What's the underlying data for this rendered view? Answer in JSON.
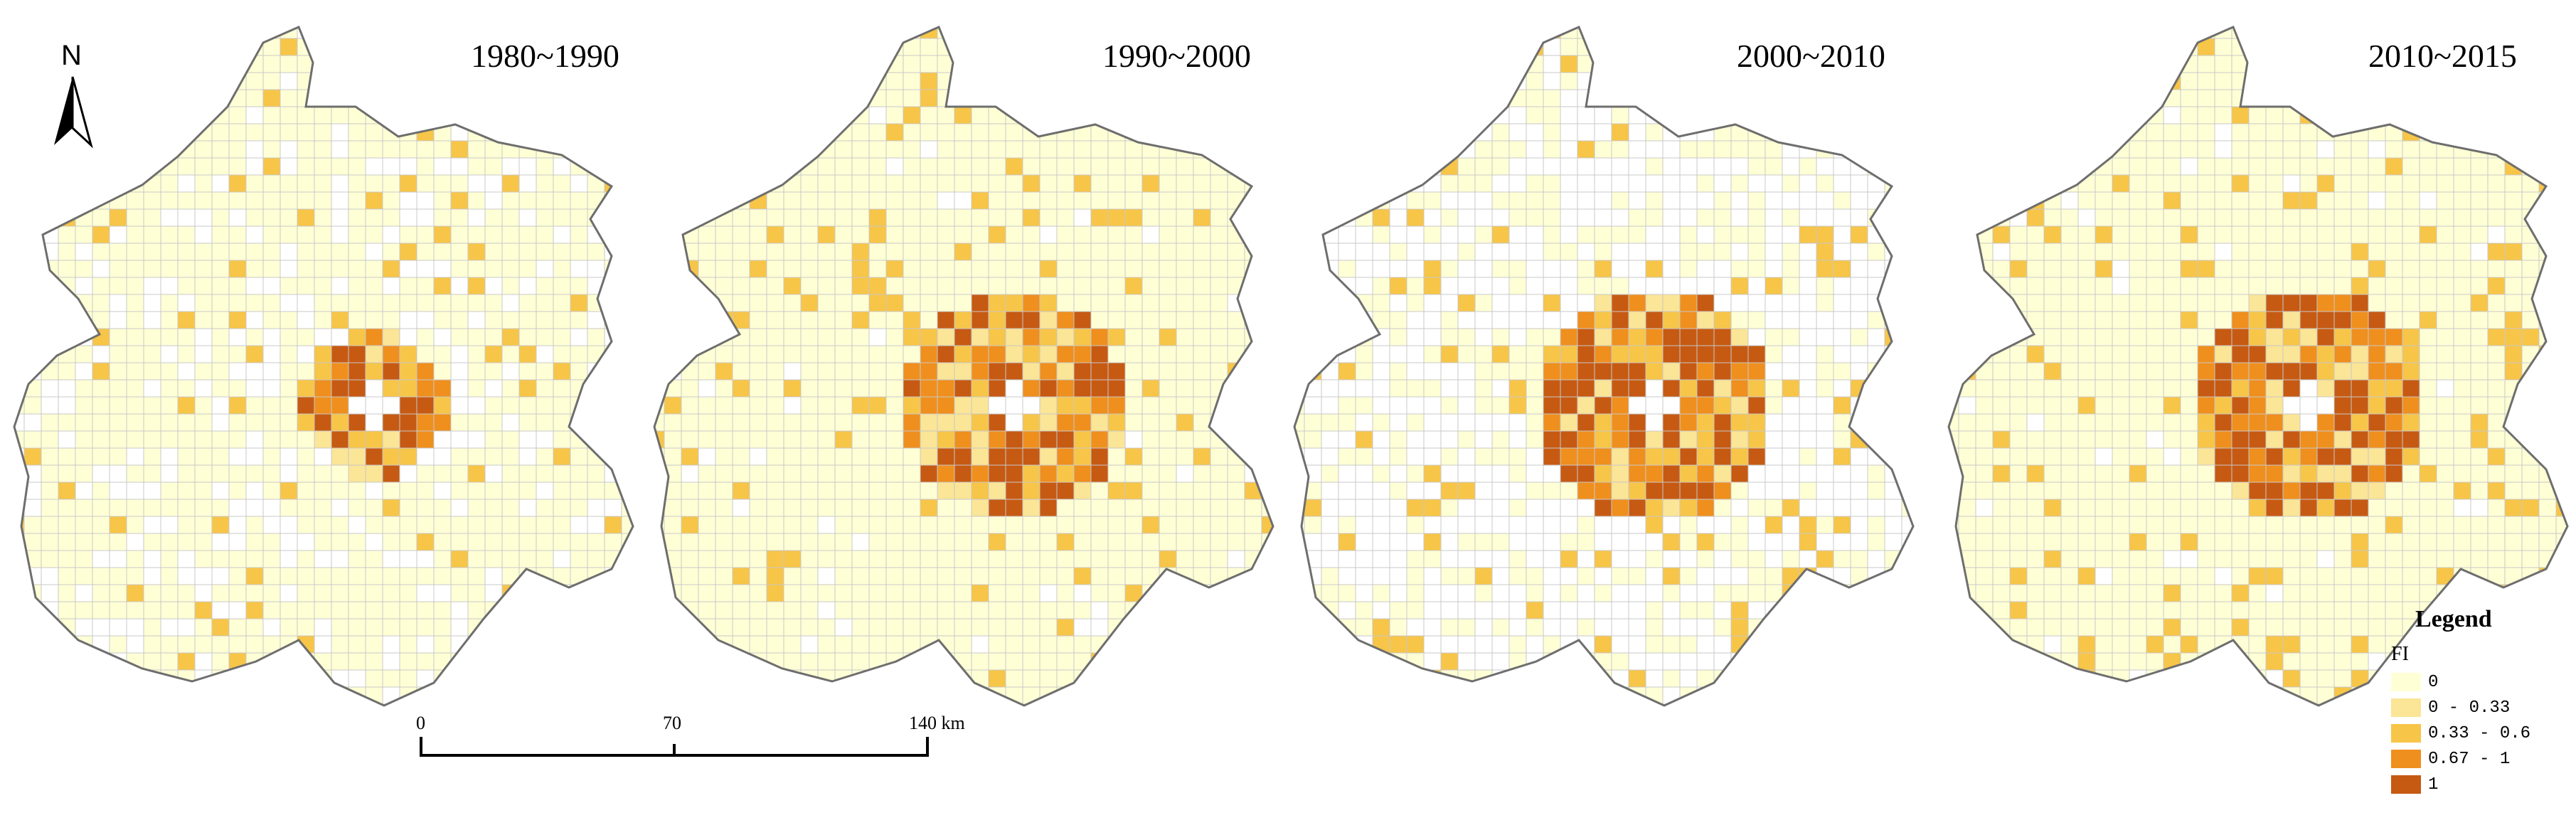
{
  "panels": [
    {
      "title": "1980~1990"
    },
    {
      "title": "1990~2000"
    },
    {
      "title": "2000~2010"
    },
    {
      "title": "2010~2015"
    }
  ],
  "north_arrow": {
    "label": "N",
    "icon": "north-arrow-icon"
  },
  "scale_bar": {
    "ticks": [
      "0",
      "70",
      "140 km"
    ]
  },
  "legend": {
    "title": "Legend",
    "field": "FI",
    "classes": [
      {
        "label": "0",
        "color": "#FFFFD6"
      },
      {
        "label": "0 - 0.33",
        "color": "#FBE596"
      },
      {
        "label": "0.33 - 0.6",
        "color": "#F7C547"
      },
      {
        "label": "0.67 - 1",
        "color": "#EF8F1E"
      },
      {
        "label": "1",
        "color": "#C65A13"
      }
    ]
  },
  "colors": {
    "blank_cell": "#FFFFFF",
    "grid_line": "#C8C8C8",
    "boundary": "#6E6E6E"
  }
}
